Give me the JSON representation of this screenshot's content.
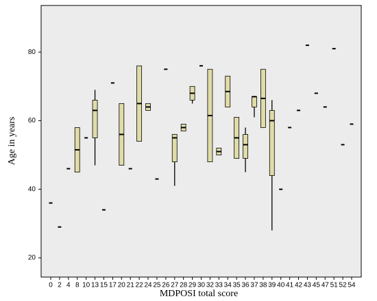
{
  "chart_data": {
    "type": "box",
    "x_label": "MDPOSI total score",
    "y_label": "Age in years",
    "categories": [
      "0",
      "2",
      "4",
      "8",
      "10",
      "13",
      "15",
      "17",
      "20",
      "21",
      "22",
      "24",
      "25",
      "26",
      "27",
      "28",
      "29",
      "30",
      "32",
      "33",
      "34",
      "35",
      "36",
      "37",
      "38",
      "39",
      "40",
      "41",
      "42",
      "43",
      "45",
      "47",
      "51",
      "52",
      "54"
    ],
    "min": [
      null,
      null,
      null,
      null,
      null,
      47,
      null,
      null,
      null,
      null,
      null,
      null,
      null,
      null,
      41,
      null,
      65,
      null,
      null,
      null,
      null,
      null,
      45,
      61,
      null,
      28,
      null,
      null,
      null,
      null,
      null,
      null,
      null,
      null,
      null
    ],
    "q1": [
      null,
      null,
      null,
      45,
      null,
      55,
      null,
      null,
      47,
      null,
      54,
      63,
      null,
      null,
      48,
      57,
      66,
      null,
      48,
      50,
      64,
      49,
      49,
      64,
      58,
      44,
      null,
      null,
      null,
      null,
      null,
      null,
      null,
      null,
      null
    ],
    "median": [
      36,
      29,
      46,
      51.5,
      55,
      63,
      34,
      71,
      56,
      46,
      65,
      64,
      43,
      75,
      55,
      58,
      68,
      76,
      61.5,
      51,
      68.5,
      55,
      53,
      67,
      66.5,
      60,
      40,
      58,
      63,
      82,
      68,
      64,
      81,
      53,
      59
    ],
    "q3": [
      null,
      null,
      null,
      58,
      null,
      66,
      null,
      null,
      65,
      null,
      76,
      65,
      null,
      null,
      56,
      59,
      70,
      null,
      75,
      52,
      73,
      61,
      56,
      67,
      75,
      63,
      null,
      null,
      null,
      null,
      null,
      null,
      null,
      null,
      null
    ],
    "max": [
      null,
      null,
      null,
      null,
      null,
      69,
      null,
      null,
      null,
      null,
      null,
      null,
      null,
      null,
      null,
      null,
      null,
      null,
      null,
      null,
      null,
      null,
      58,
      null,
      null,
      66,
      null,
      null,
      null,
      null,
      null,
      null,
      null,
      null,
      null
    ],
    "color": "#e0dca8",
    "ylim": [
      14.4,
      93.6
    ],
    "yticks": [
      20,
      40,
      60,
      80
    ]
  }
}
